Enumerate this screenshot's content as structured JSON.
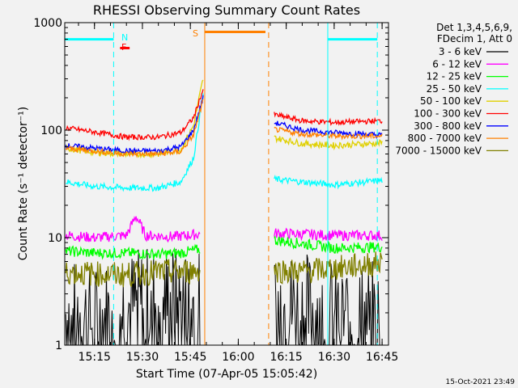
{
  "chart_data": {
    "type": "line",
    "title": "RHESSI Observing Summary Count Rates",
    "xlabel": "Start Time (07-Apr-05 15:05:42)",
    "ylabel": "Count Rate (s⁻¹ detector⁻¹)",
    "yscale": "log",
    "ylim": [
      1,
      1000
    ],
    "xlim": [
      "15:05:42",
      "16:47:00"
    ],
    "x_ticks": [
      "15:15",
      "15:30",
      "15:45",
      "16:00",
      "16:15",
      "16:30",
      "16:45"
    ],
    "y_ticks": [
      "1",
      "10",
      "100",
      "1000"
    ],
    "grid": false,
    "legend_position": "top-right",
    "legend_header": [
      "Det 1,3,4,5,6,9,",
      "FDecim 1, Att 0"
    ],
    "footer_date": "15-Oct-2021 23:49",
    "annotations": {
      "night": "N",
      "saa": "S",
      "flare": "F"
    },
    "data_gap": [
      "15:49:30",
      "16:09:30"
    ],
    "vertical_markers": [
      {
        "time": "15:05:42",
        "style": "solid",
        "color": "#00ffff"
      },
      {
        "time": "15:21:00",
        "style": "dashed",
        "color": "#00ffff"
      },
      {
        "time": "15:49:30",
        "style": "solid",
        "color": "#ff8000"
      },
      {
        "time": "16:09:30",
        "style": "dashed",
        "color": "#ff8000"
      },
      {
        "time": "16:28:00",
        "style": "solid",
        "color": "#00ffff"
      },
      {
        "time": "16:43:30",
        "style": "dashed",
        "color": "#00ffff"
      }
    ],
    "bars": [
      {
        "label": "night",
        "start": "15:05:42",
        "end": "15:21:00",
        "value": 700,
        "color": "#00ffff"
      },
      {
        "label": "saa",
        "start": "15:49:30",
        "end": "16:08:30",
        "value": 820,
        "color": "#ff8000"
      },
      {
        "label": "night",
        "start": "16:28:00",
        "end": "16:43:30",
        "value": 700,
        "color": "#00ffff"
      },
      {
        "label": "flare",
        "start": "15:23:00",
        "end": "15:26:00",
        "value": 580,
        "color": "#ff0000"
      }
    ],
    "series": [
      {
        "name": "3 - 6 keV",
        "color": "#000000",
        "points": [
          [
            "15:06",
            2.0
          ],
          [
            "15:15",
            1.6
          ],
          [
            "15:25",
            2.2
          ],
          [
            "15:35",
            2.6
          ],
          [
            "15:42",
            2.4
          ],
          [
            "15:48",
            2.2
          ],
          [
            "16:11",
            2.3
          ],
          [
            "16:20",
            2.2
          ],
          [
            "16:30",
            1.8
          ],
          [
            "16:45",
            1.8
          ]
        ]
      },
      {
        "name": "6 - 12 keV",
        "color": "#ff00ff",
        "points": [
          [
            "15:06",
            10.5
          ],
          [
            "15:15",
            10.0
          ],
          [
            "15:25",
            10.5
          ],
          [
            "15:28",
            16.0
          ],
          [
            "15:31",
            10.5
          ],
          [
            "15:40",
            10.2
          ],
          [
            "15:48",
            10.8
          ],
          [
            "16:11",
            11.0
          ],
          [
            "16:20",
            10.8
          ],
          [
            "16:30",
            10.5
          ],
          [
            "16:45",
            10.5
          ]
        ]
      },
      {
        "name": "12 - 25 keV",
        "color": "#00ff00",
        "points": [
          [
            "15:06",
            7.5
          ],
          [
            "15:15",
            7.2
          ],
          [
            "15:25",
            7.2
          ],
          [
            "15:35",
            7.0
          ],
          [
            "15:42",
            7.2
          ],
          [
            "15:48",
            7.8
          ],
          [
            "16:11",
            9.5
          ],
          [
            "16:20",
            8.8
          ],
          [
            "16:30",
            8.0
          ],
          [
            "16:45",
            8.2
          ]
        ]
      },
      {
        "name": "25 - 50 keV",
        "color": "#00ffff",
        "points": [
          [
            "15:06",
            33
          ],
          [
            "15:15",
            30
          ],
          [
            "15:25",
            29
          ],
          [
            "15:35",
            29
          ],
          [
            "15:42",
            33
          ],
          [
            "15:46",
            55
          ],
          [
            "15:49",
            220
          ],
          [
            "16:11",
            35
          ],
          [
            "16:20",
            33
          ],
          [
            "16:30",
            31
          ],
          [
            "16:45",
            34
          ]
        ]
      },
      {
        "name": "50 - 100 keV",
        "color": "#e0d000",
        "points": [
          [
            "15:06",
            68
          ],
          [
            "15:15",
            62
          ],
          [
            "15:25",
            60
          ],
          [
            "15:35",
            60
          ],
          [
            "15:42",
            66
          ],
          [
            "15:46",
            110
          ],
          [
            "15:49",
            300
          ],
          [
            "16:11",
            85
          ],
          [
            "16:20",
            75
          ],
          [
            "16:30",
            72
          ],
          [
            "16:45",
            76
          ]
        ]
      },
      {
        "name": "100 - 300 keV",
        "color": "#ff0000",
        "points": [
          [
            "15:06",
            105
          ],
          [
            "15:15",
            96
          ],
          [
            "15:25",
            86
          ],
          [
            "15:35",
            86
          ],
          [
            "15:42",
            95
          ],
          [
            "15:46",
            130
          ],
          [
            "15:49",
            240
          ],
          [
            "16:11",
            140
          ],
          [
            "16:20",
            122
          ],
          [
            "16:30",
            118
          ],
          [
            "16:45",
            122
          ]
        ]
      },
      {
        "name": "300 - 800 keV",
        "color": "#0000ff",
        "points": [
          [
            "15:06",
            72
          ],
          [
            "15:15",
            68
          ],
          [
            "15:25",
            64
          ],
          [
            "15:35",
            64
          ],
          [
            "15:42",
            70
          ],
          [
            "15:46",
            100
          ],
          [
            "15:49",
            200
          ],
          [
            "16:11",
            118
          ],
          [
            "16:20",
            100
          ],
          [
            "16:30",
            95
          ],
          [
            "16:45",
            90
          ]
        ]
      },
      {
        "name": "800 - 7000 keV",
        "color": "#ff8000",
        "points": [
          [
            "15:06",
            68
          ],
          [
            "15:15",
            64
          ],
          [
            "15:25",
            60
          ],
          [
            "15:35",
            60
          ],
          [
            "15:42",
            63
          ],
          [
            "15:46",
            90
          ],
          [
            "15:49",
            190
          ],
          [
            "16:11",
            102
          ],
          [
            "16:20",
            92
          ],
          [
            "16:30",
            88
          ],
          [
            "16:45",
            88
          ]
        ]
      },
      {
        "name": "7000 - 15000 keV",
        "color": "#808000",
        "points": [
          [
            "15:06",
            4.8
          ],
          [
            "15:15",
            4.6
          ],
          [
            "15:25",
            4.5
          ],
          [
            "15:35",
            4.8
          ],
          [
            "15:42",
            4.8
          ],
          [
            "15:48",
            5.0
          ],
          [
            "16:11",
            5.0
          ],
          [
            "16:20",
            4.8
          ],
          [
            "16:30",
            5.2
          ],
          [
            "16:45",
            5.8
          ]
        ]
      }
    ]
  }
}
